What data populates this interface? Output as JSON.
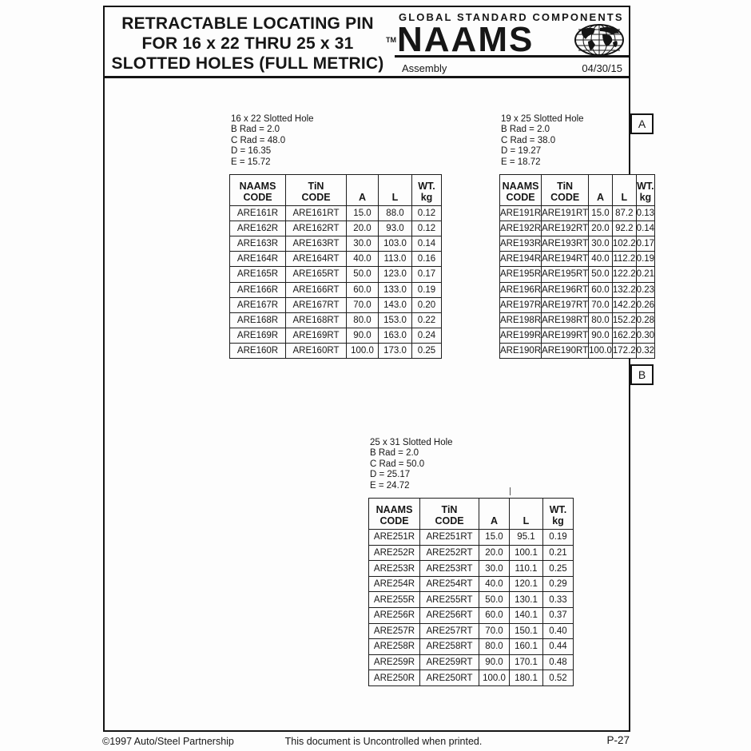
{
  "page": {
    "title_lines": [
      "RETRACTABLE LOCATING PIN",
      "FOR 16 x 22 THRU 25 x 31",
      "SLOTTED HOLES (FULL METRIC)"
    ],
    "brand": {
      "tagline": "GLOBAL STANDARD COMPONENTS",
      "tm": "TM",
      "name": "NAAMS",
      "category": "Assembly",
      "date": "04/30/15"
    },
    "side_labels": {
      "a": "A",
      "b": "B"
    },
    "footer": {
      "copyright": "©1997 Auto/Steel Partnership",
      "notice": "This document is Uncontrolled when printed.",
      "page_number": "P-27"
    }
  },
  "tables": [
    {
      "notes": [
        "16 x 22 Slotted Hole",
        "B Rad = 2.0",
        "C Rad = 48.0",
        "D = 16.35",
        "E = 15.72"
      ],
      "columns": [
        "NAAMS\nCODE",
        "TiN\nCODE",
        "A",
        "L",
        "WT.\nkg"
      ],
      "rows": [
        [
          "ARE161R",
          "ARE161RT",
          "15.0",
          "88.0",
          "0.12"
        ],
        [
          "ARE162R",
          "ARE162RT",
          "20.0",
          "93.0",
          "0.12"
        ],
        [
          "ARE163R",
          "ARE163RT",
          "30.0",
          "103.0",
          "0.14"
        ],
        [
          "ARE164R",
          "ARE164RT",
          "40.0",
          "113.0",
          "0.16"
        ],
        [
          "ARE165R",
          "ARE165RT",
          "50.0",
          "123.0",
          "0.17"
        ],
        [
          "ARE166R",
          "ARE166RT",
          "60.0",
          "133.0",
          "0.19"
        ],
        [
          "ARE167R",
          "ARE167RT",
          "70.0",
          "143.0",
          "0.20"
        ],
        [
          "ARE168R",
          "ARE168RT",
          "80.0",
          "153.0",
          "0.22"
        ],
        [
          "ARE169R",
          "ARE169RT",
          "90.0",
          "163.0",
          "0.24"
        ],
        [
          "ARE160R",
          "ARE160RT",
          "100.0",
          "173.0",
          "0.25"
        ]
      ]
    },
    {
      "notes": [
        "19 x 25 Slotted Hole",
        "B Rad = 2.0",
        "C Rad = 38.0",
        "D = 19.27",
        "E = 18.72"
      ],
      "columns": [
        "NAAMS\nCODE",
        "TiN\nCODE",
        "A",
        "L",
        "WT.\nkg"
      ],
      "rows": [
        [
          "ARE191R",
          "ARE191RT",
          "15.0",
          "87.2",
          "0.13"
        ],
        [
          "ARE192R",
          "ARE192RT",
          "20.0",
          "92.2",
          "0.14"
        ],
        [
          "ARE193R",
          "ARE193RT",
          "30.0",
          "102.2",
          "0.17"
        ],
        [
          "ARE194R",
          "ARE194RT",
          "40.0",
          "112.2",
          "0.19"
        ],
        [
          "ARE195R",
          "ARE195RT",
          "50.0",
          "122.2",
          "0.21"
        ],
        [
          "ARE196R",
          "ARE196RT",
          "60.0",
          "132.2",
          "0.23"
        ],
        [
          "ARE197R",
          "ARE197RT",
          "70.0",
          "142.2",
          "0.26"
        ],
        [
          "ARE198R",
          "ARE198RT",
          "80.0",
          "152.2",
          "0.28"
        ],
        [
          "ARE199R",
          "ARE199RT",
          "90.0",
          "162.2",
          "0.30"
        ],
        [
          "ARE190R",
          "ARE190RT",
          "100.0",
          "172.2",
          "0.32"
        ]
      ]
    },
    {
      "notes": [
        "25 x 31 Slotted Hole",
        "B Rad = 2.0",
        "C Rad = 50.0",
        "D = 25.17",
        "E = 24.72"
      ],
      "columns": [
        "NAAMS\nCODE",
        "TiN\nCODE",
        "A",
        "L",
        "WT.\nkg"
      ],
      "rows": [
        [
          "ARE251R",
          "ARE251RT",
          "15.0",
          "95.1",
          "0.19"
        ],
        [
          "ARE252R",
          "ARE252RT",
          "20.0",
          "100.1",
          "0.21"
        ],
        [
          "ARE253R",
          "ARE253RT",
          "30.0",
          "110.1",
          "0.25"
        ],
        [
          "ARE254R",
          "ARE254RT",
          "40.0",
          "120.1",
          "0.29"
        ],
        [
          "ARE255R",
          "ARE255RT",
          "50.0",
          "130.1",
          "0.33"
        ],
        [
          "ARE256R",
          "ARE256RT",
          "60.0",
          "140.1",
          "0.37"
        ],
        [
          "ARE257R",
          "ARE257RT",
          "70.0",
          "150.1",
          "0.40"
        ],
        [
          "ARE258R",
          "ARE258RT",
          "80.0",
          "160.1",
          "0.44"
        ],
        [
          "ARE259R",
          "ARE259RT",
          "90.0",
          "170.1",
          "0.48"
        ],
        [
          "ARE250R",
          "ARE250RT",
          "100.0",
          "180.1",
          "0.52"
        ]
      ]
    }
  ]
}
